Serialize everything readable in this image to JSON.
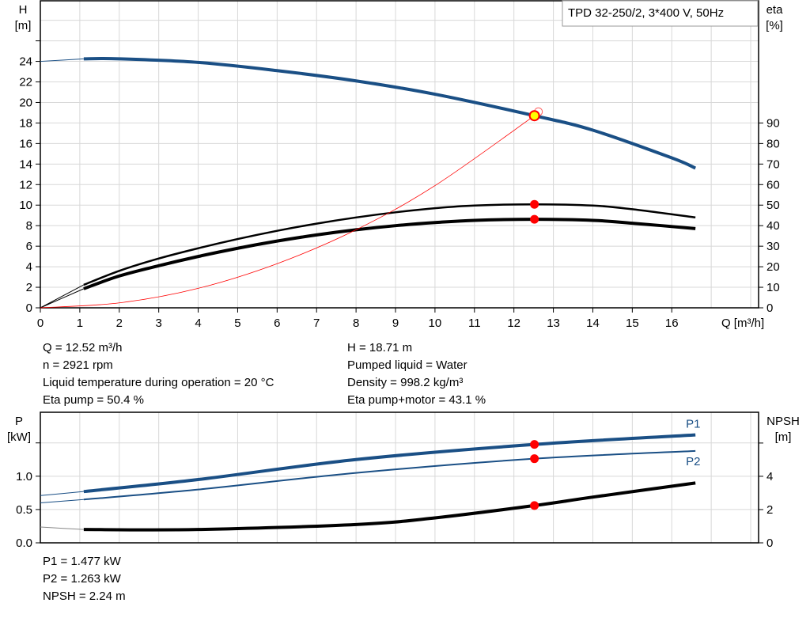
{
  "chart_data": [
    {
      "type": "line",
      "title": "TPD 32-250/2, 3*400 V, 50Hz",
      "xlabel": "Q [m³/h]",
      "xlim": [
        0,
        18.2
      ],
      "xticks": [
        0,
        1,
        2,
        3,
        4,
        5,
        6,
        7,
        8,
        9,
        10,
        11,
        12,
        13,
        14,
        15,
        16
      ],
      "ylabel_left": [
        "H",
        "[m]"
      ],
      "ylim_left": [
        0,
        29.9
      ],
      "yticks_left": [
        0,
        2,
        4,
        6,
        8,
        10,
        12,
        14,
        16,
        18,
        20,
        22,
        24
      ],
      "ylabel_right": [
        "eta",
        "[%]"
      ],
      "ylim_right": [
        0,
        149.5
      ],
      "yticks_right": [
        0,
        10,
        20,
        30,
        40,
        50,
        60,
        70,
        80,
        90
      ],
      "grid": true,
      "series": [
        {
          "axis": "left",
          "color": "#1a4f85",
          "x": [
            0,
            1.1,
            2,
            4,
            6,
            8,
            10,
            12.52,
            14,
            16,
            16.6
          ],
          "y": [
            24.0,
            24.25,
            24.25,
            23.9,
            23.1,
            22.1,
            20.8,
            18.71,
            17.3,
            14.6,
            13.6
          ]
        },
        {
          "axis": "right",
          "color": "#000000",
          "x": [
            0,
            1.1,
            2,
            3,
            4,
            5,
            6,
            7,
            8,
            9,
            10,
            11,
            12.52,
            14,
            15,
            16.6
          ],
          "y": [
            0,
            11.2,
            18,
            24,
            29,
            33.5,
            37.5,
            41,
            44,
            46.5,
            48.5,
            49.8,
            50.4,
            49.8,
            48,
            44
          ]
        },
        {
          "axis": "right",
          "color": "#000000",
          "x": [
            0,
            1.1,
            2,
            3,
            4,
            5,
            6,
            7,
            8,
            9,
            10,
            11,
            12.52,
            14,
            15,
            16.6
          ],
          "y": [
            0,
            9.3,
            15.5,
            20.5,
            25,
            29,
            32.5,
            35.5,
            38,
            40,
            41.5,
            42.6,
            43.1,
            42.6,
            41.2,
            38.6
          ]
        },
        {
          "axis": "left",
          "color": "#ff0000",
          "x": [
            0,
            2,
            4,
            6,
            8,
            10,
            12.52
          ],
          "y": [
            0,
            0.48,
            1.9,
            4.3,
            7.6,
            11.9,
            18.71
          ]
        }
      ],
      "operating_point": {
        "Q": 12.52,
        "H": 18.71,
        "eta_pump": 50.4,
        "eta_pump_motor": 43.1
      }
    },
    {
      "type": "line",
      "xlim": [
        0,
        18.2
      ],
      "ylabel_left": [
        "P",
        "[kW]"
      ],
      "ylim_left": [
        0,
        1.96
      ],
      "yticks_left": [
        0,
        0.5,
        1.0,
        1.5
      ],
      "ytick_labels_left": [
        "0.0",
        "0.5",
        "1.0",
        ""
      ],
      "ylabel_right": [
        "NPSH",
        "[m]"
      ],
      "ylim_right": [
        0,
        7.85
      ],
      "yticks_right": [
        0,
        2,
        4,
        6
      ],
      "ytick_labels_right": [
        "0",
        "2",
        "4",
        ""
      ],
      "grid": true,
      "series": [
        {
          "name": "P1",
          "axis": "left",
          "color": "#1a4f85",
          "x": [
            0,
            1.1,
            4,
            8,
            12.52,
            16.6
          ],
          "y": [
            0.71,
            0.77,
            0.95,
            1.25,
            1.477,
            1.62
          ]
        },
        {
          "name": "P2",
          "axis": "left",
          "color": "#1a4f85",
          "x": [
            0,
            1.1,
            4,
            8,
            12.52,
            16.6
          ],
          "y": [
            0.6,
            0.65,
            0.8,
            1.05,
            1.263,
            1.38
          ]
        },
        {
          "axis": "right",
          "color": "#000000",
          "x": [
            0,
            1.1,
            4,
            8,
            10,
            12.52,
            14,
            16.6
          ],
          "y": [
            0.95,
            0.8,
            0.8,
            1.1,
            1.5,
            2.24,
            2.75,
            3.6
          ]
        }
      ]
    }
  ],
  "info": {
    "left": [
      "Q = 12.52 m³/h",
      "n = 2921 rpm",
      "Liquid temperature during operation = 20 °C",
      "Eta pump = 50.4 %"
    ],
    "right": [
      "H = 18.71 m",
      "Pumped liquid = Water",
      "Density = 998.2 kg/m³",
      "Eta pump+motor = 43.1 %"
    ],
    "bottom": [
      "P1 = 1.477 kW",
      "P2 = 1.263 kW",
      "NPSH = 2.24 m"
    ]
  }
}
